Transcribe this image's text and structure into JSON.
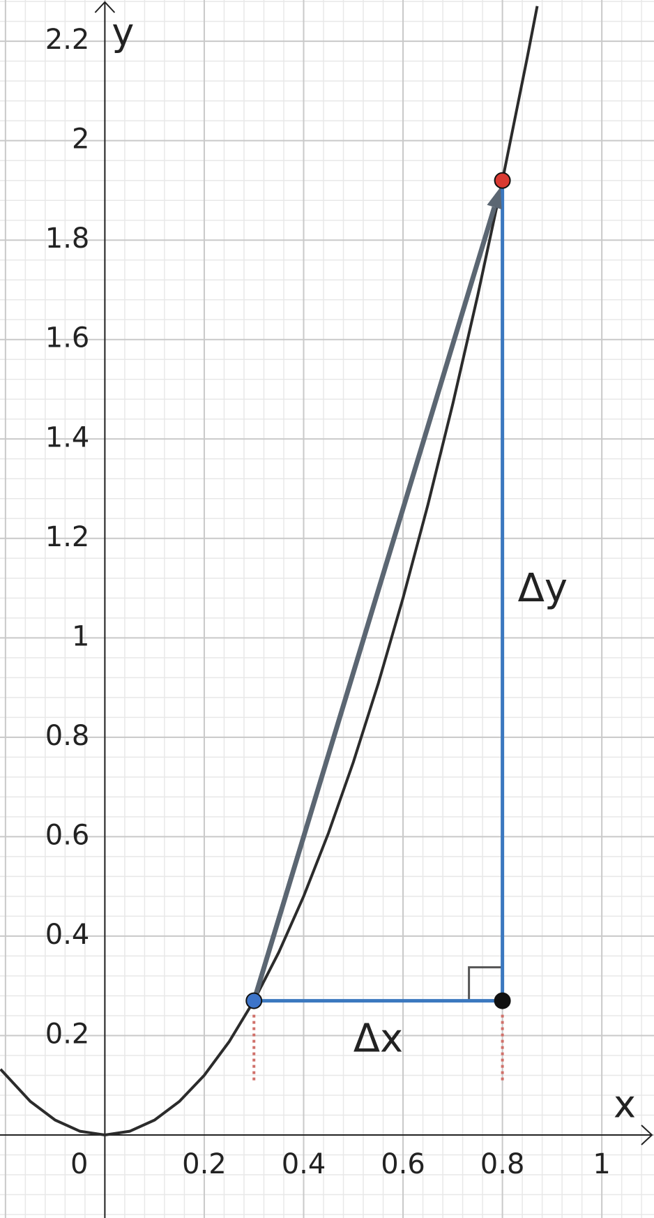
{
  "chart_data": {
    "type": "line",
    "x_label": "x",
    "y_label": "y",
    "xlim": [
      -0.211,
      1.105
    ],
    "ylim": [
      -0.167,
      2.283
    ],
    "xticks": [
      0,
      0.2,
      0.4,
      0.6,
      0.8,
      1
    ],
    "yticks": [
      0.2,
      0.4,
      0.6,
      0.8,
      1,
      1.2,
      1.4,
      1.6,
      1.8,
      2,
      2.2
    ],
    "grid": true,
    "curve": {
      "color": "#2b2b2b",
      "x": [
        -0.21,
        -0.15,
        -0.1,
        -0.05,
        0,
        0.05,
        0.1,
        0.15,
        0.2,
        0.25,
        0.3,
        0.35,
        0.4,
        0.45,
        0.5,
        0.55,
        0.6,
        0.65,
        0.7,
        0.75,
        0.8,
        0.85,
        0.87
      ],
      "y": [
        0.1323,
        0.0675,
        0.03,
        0.0075,
        0,
        0.0075,
        0.03,
        0.0675,
        0.12,
        0.1875,
        0.27,
        0.3675,
        0.48,
        0.6075,
        0.75,
        0.9075,
        1.08,
        1.2675,
        1.47,
        1.6875,
        1.92,
        2.1675,
        2.2707
      ]
    },
    "points": [
      {
        "x": 0.3,
        "y": 0.27,
        "color": "#3d74c9"
      },
      {
        "x": 0.8,
        "y": 1.92,
        "color": "#d93a32"
      },
      {
        "x": 0.8,
        "y": 0.27,
        "color": "#111111"
      }
    ],
    "secant_color": "#5b6672",
    "delta_color": "#3b78bf",
    "delta_x_label": "Δx",
    "delta_y_label": "Δy"
  }
}
